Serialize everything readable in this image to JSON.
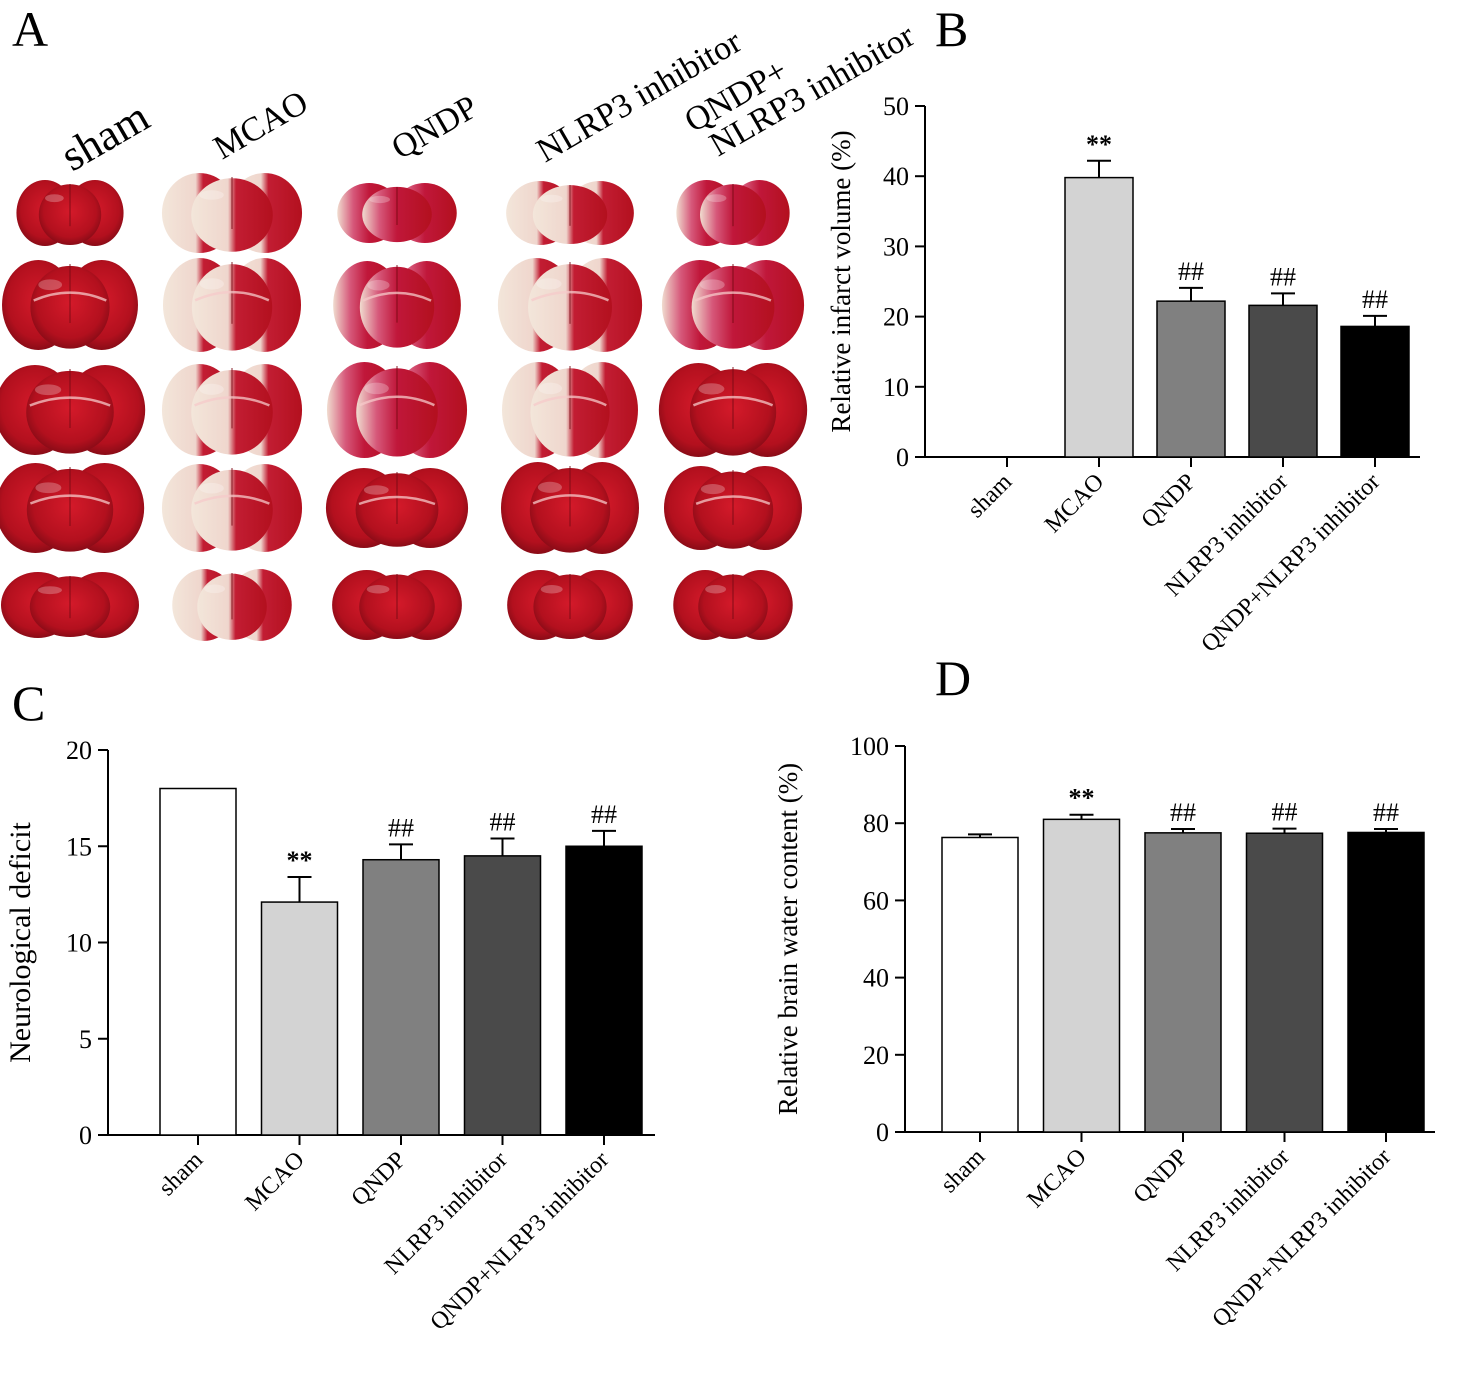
{
  "panel_labels": {
    "A": "A",
    "B": "B",
    "C": "C",
    "D": "D"
  },
  "photo_panel": {
    "column_labels": [
      "sham",
      "MCAO",
      "QNDP",
      "NLRP3 inhibitor",
      "QNDP+",
      "NLRP3 inhibitor"
    ],
    "description": "TTC-stained coronal brain slices, 5 rows x 5 groups"
  },
  "colors": {
    "sham": "#ffffff",
    "MCAO": "#d3d3d3",
    "QNDP": "#808080",
    "NLRP3 inhibitor": "#4a4a4a",
    "QNDP+NLRP3 inhibitor": "#000000",
    "tissue_red": "#b3101e",
    "tissue_pale": "#f0dcd0"
  },
  "chart_data": [
    {
      "id": "B",
      "type": "bar",
      "categories": [
        "sham",
        "MCAO",
        "QNDP",
        "NLRP3 inhibitor",
        "QNDP+NLRP3 inhibitor"
      ],
      "values": [
        0,
        39.8,
        22.2,
        21.6,
        18.6
      ],
      "errors": [
        0,
        2.4,
        1.9,
        1.7,
        1.5
      ],
      "annotations": [
        "",
        "**",
        "##",
        "##",
        "##"
      ],
      "ylabel": "Relative infarct volume (%)",
      "xlabel": "",
      "ylim": [
        0,
        50
      ],
      "yticks": [
        "0",
        "10",
        "20",
        "30",
        "40",
        "50"
      ]
    },
    {
      "id": "C",
      "type": "bar",
      "categories": [
        "sham",
        "MCAO",
        "QNDP",
        "NLRP3 inhibitor",
        "QNDP+NLRP3 inhibitor"
      ],
      "values": [
        18.0,
        12.1,
        14.3,
        14.5,
        15.0
      ],
      "errors": [
        0,
        1.3,
        0.8,
        0.9,
        0.8
      ],
      "annotations": [
        "",
        "**",
        "##",
        "##",
        "##"
      ],
      "ylabel": "Neurological  deficit",
      "xlabel": "",
      "ylim": [
        0,
        20
      ],
      "yticks": [
        "0",
        "5",
        "10",
        "15",
        "20"
      ]
    },
    {
      "id": "D",
      "type": "bar",
      "categories": [
        "sham",
        "MCAO",
        "QNDP",
        "NLRP3 inhibitor",
        "QNDP+NLRP3 inhibitor"
      ],
      "values": [
        76.3,
        81.0,
        77.5,
        77.4,
        77.6
      ],
      "errors": [
        0.8,
        1.2,
        1.0,
        1.2,
        0.9
      ],
      "annotations": [
        "",
        "**",
        "##",
        "##",
        "##"
      ],
      "ylabel": "Relative brain water content (%)",
      "xlabel": "",
      "ylim": [
        0,
        100
      ],
      "yticks": [
        "0",
        "20",
        "40",
        "60",
        "80",
        "100"
      ]
    }
  ]
}
